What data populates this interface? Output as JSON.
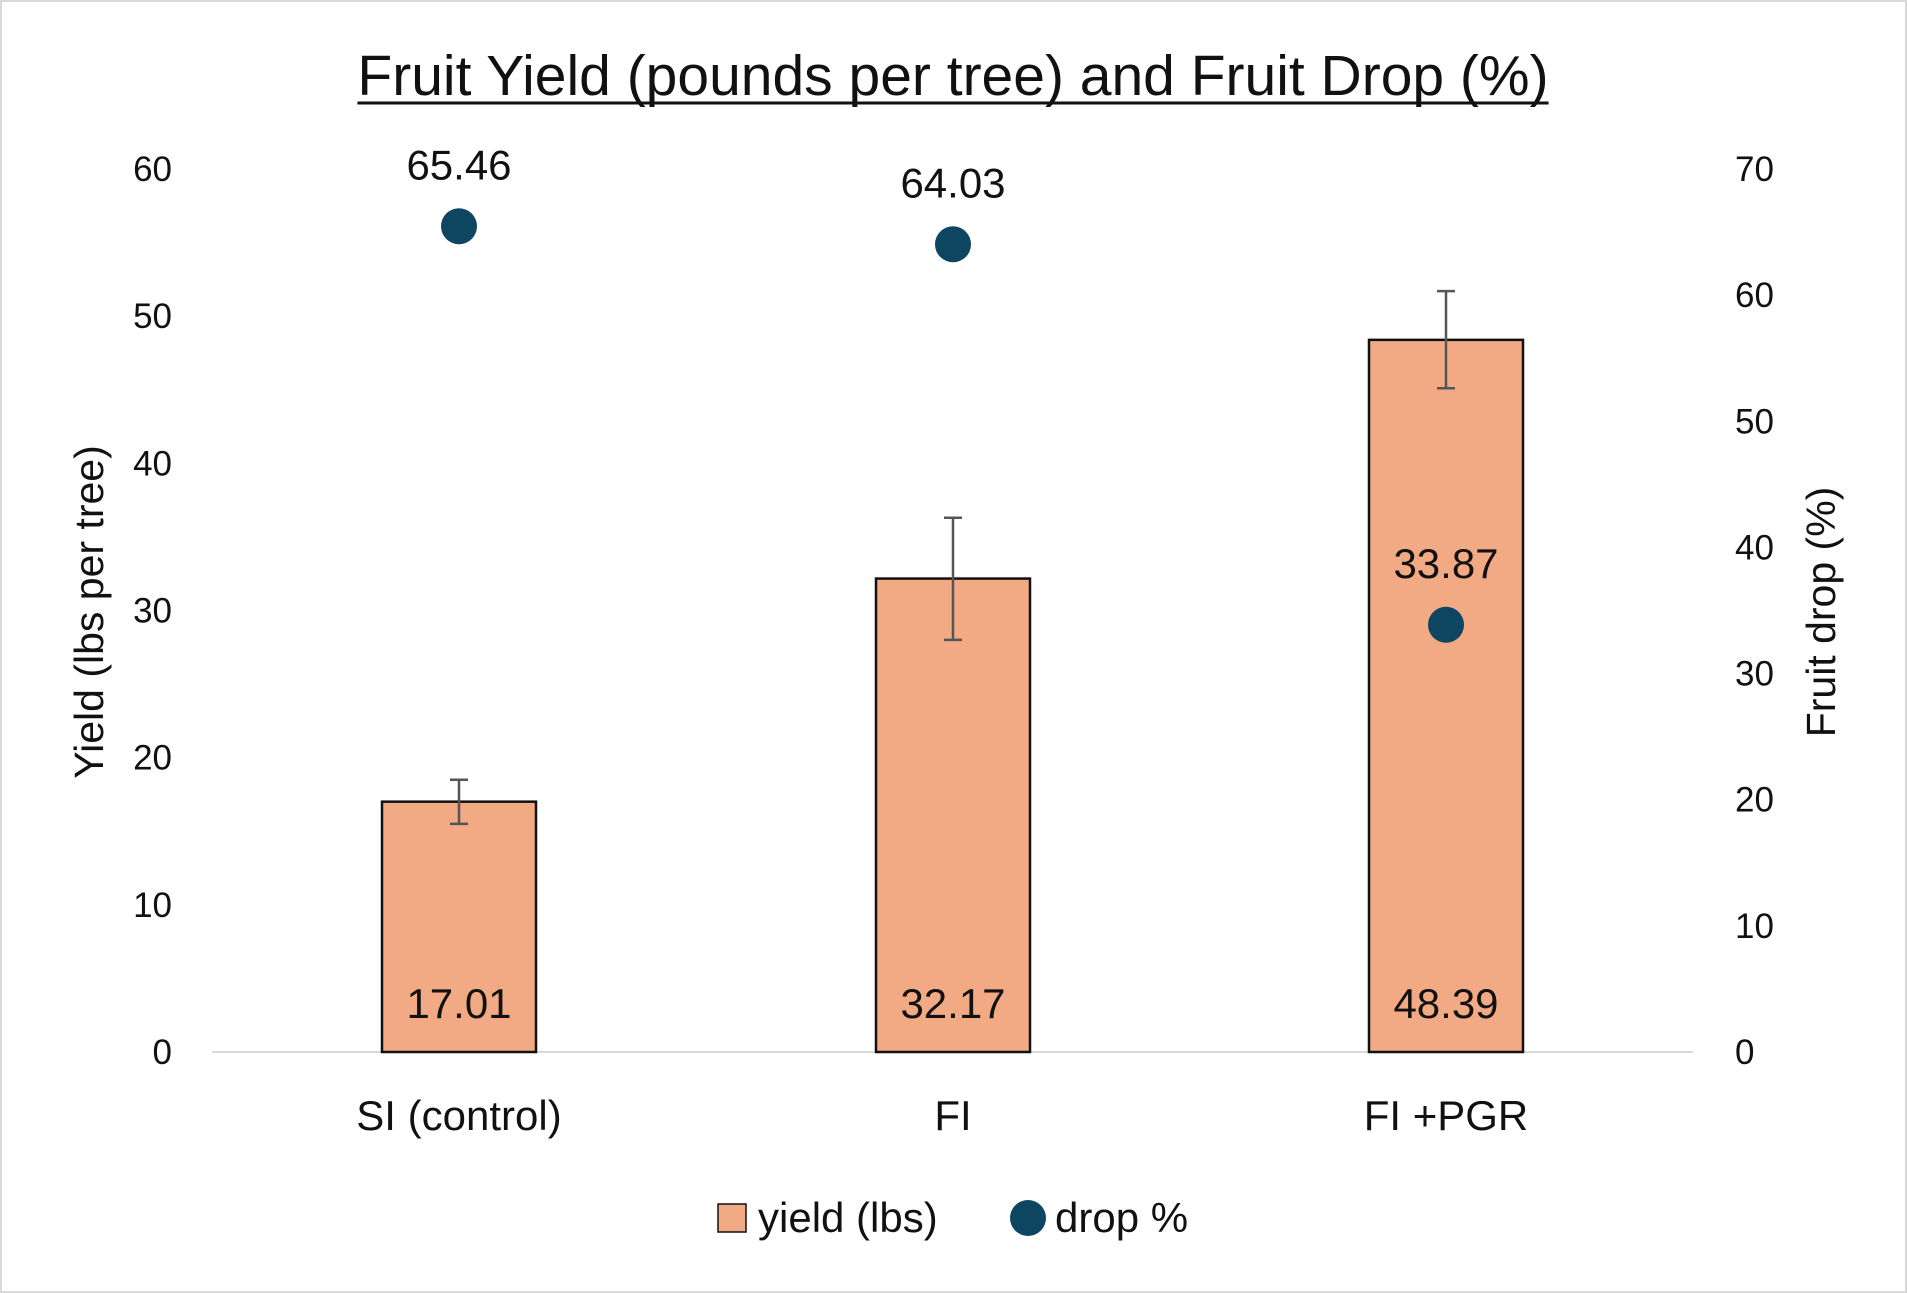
{
  "chart_data": {
    "type": "bar",
    "title": "Fruit Yield (pounds per tree) and Fruit Drop (%)",
    "categories": [
      "SI (control)",
      "FI",
      "FI +PGR"
    ],
    "ylabel": "Yield (lbs per tree)",
    "y2label": "Fruit drop (%)",
    "ylim": [
      0,
      60
    ],
    "y2lim": [
      0,
      70
    ],
    "yticks": [
      "0",
      "10",
      "20",
      "30",
      "40",
      "50",
      "60"
    ],
    "y2ticks": [
      "0",
      "10",
      "20",
      "30",
      "40",
      "50",
      "60",
      "70"
    ],
    "series": [
      {
        "name": "yield (lbs)",
        "type": "bar",
        "axis": "left",
        "values": [
          17.01,
          32.17,
          48.39
        ],
        "labels": [
          "17.01",
          "32.17",
          "48.39"
        ],
        "error_low": [
          15.5,
          28.0,
          45.1
        ],
        "error_high": [
          18.5,
          36.3,
          51.7
        ],
        "color": "#f1aa84"
      },
      {
        "name": "drop %",
        "type": "scatter",
        "axis": "right",
        "values": [
          65.46,
          64.03,
          33.87
        ],
        "labels": [
          "65.46",
          "64.03",
          "33.87"
        ],
        "color": "#0e4560"
      }
    ],
    "legend": "bottom",
    "grid": false
  }
}
